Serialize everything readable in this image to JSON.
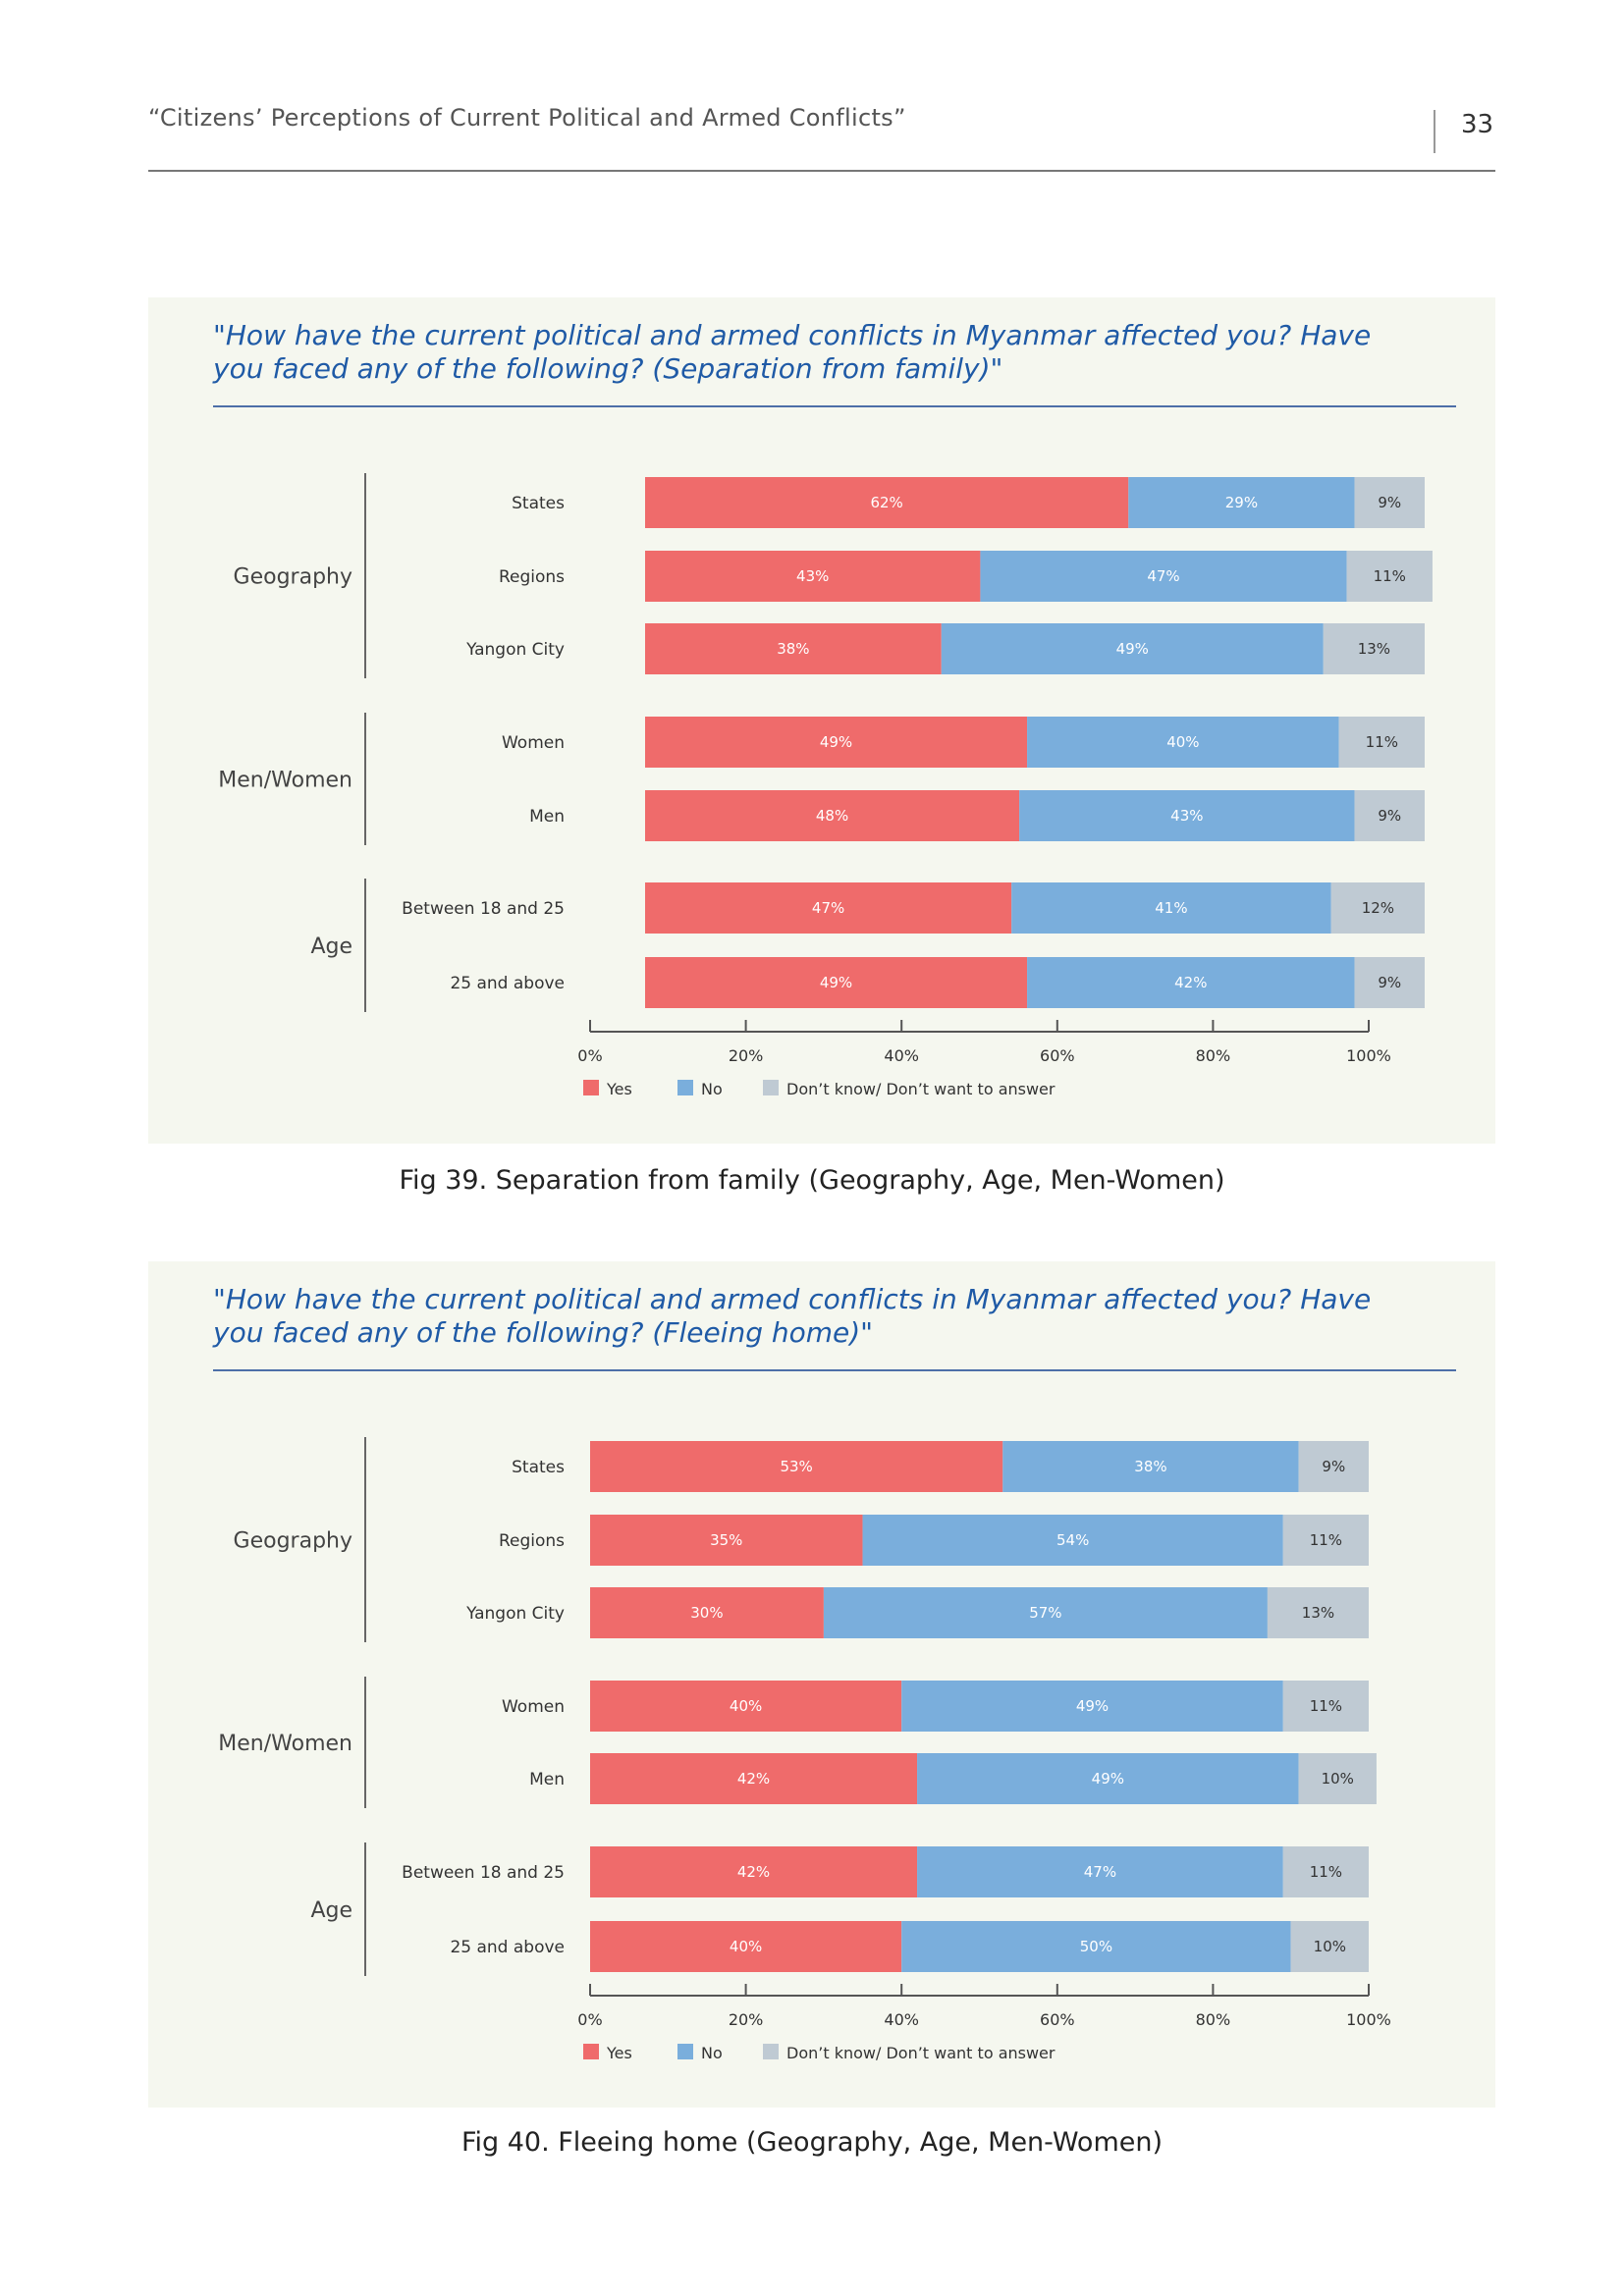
{
  "header": {
    "running_title": "“Citizens’ Perceptions of Current Political and Armed Conflicts”",
    "page_number": "33"
  },
  "colors": {
    "yes": "#ef6b6b",
    "no": "#7aaedc",
    "dk": "#bfcad3",
    "panel_bg": "#f5f7ef",
    "question": "#1f5aa6"
  },
  "legend": {
    "yes": "Yes",
    "no": "No",
    "dk": "Don’t know/ Don’t want to answer"
  },
  "figures": [
    {
      "question": "\"How have the current political and armed conflicts in Myanmar affected you? Have you faced any of the following? (Separation from family)\"",
      "caption": "Fig 39. Separation from family (Geography, Age, Men-Women)"
    },
    {
      "question": "\"How have the current political and armed conflicts in Myanmar affected you? Have you faced any of the following? (Fleeing home)\"",
      "caption": "Fig 40. Fleeing home (Geography, Age, Men-Women)"
    }
  ],
  "chart_data": [
    {
      "type": "bar",
      "orientation": "horizontal",
      "stacked": true,
      "xlim": [
        0,
        100
      ],
      "xticks": [
        "0%",
        "20%",
        "40%",
        "60%",
        "80%",
        "100%"
      ],
      "groups": [
        {
          "label": "Geography",
          "categories": [
            "States",
            "Regions",
            "Yangon City"
          ]
        },
        {
          "label": "Men/Women",
          "categories": [
            "Women",
            "Men"
          ]
        },
        {
          "label": "Age",
          "categories": [
            "Between 18 and 25",
            "25 and above"
          ]
        }
      ],
      "categories": [
        "States",
        "Regions",
        "Yangon City",
        "Women",
        "Men",
        "Between 18 and 25",
        "25 and above"
      ],
      "series": [
        {
          "name": "Yes",
          "values": [
            62,
            43,
            38,
            49,
            48,
            47,
            49
          ]
        },
        {
          "name": "No",
          "values": [
            29,
            47,
            49,
            40,
            43,
            41,
            42
          ]
        },
        {
          "name": "Don’t know/ Don’t want to answer",
          "values": [
            9,
            11,
            13,
            11,
            9,
            12,
            9
          ]
        }
      ],
      "legend_position": "bottom"
    },
    {
      "type": "bar",
      "orientation": "horizontal",
      "stacked": true,
      "xlim": [
        0,
        100
      ],
      "xticks": [
        "0%",
        "20%",
        "40%",
        "60%",
        "80%",
        "100%"
      ],
      "groups": [
        {
          "label": "Geography",
          "categories": [
            "States",
            "Regions",
            "Yangon City"
          ]
        },
        {
          "label": "Men/Women",
          "categories": [
            "Women",
            "Men"
          ]
        },
        {
          "label": "Age",
          "categories": [
            "Between 18 and 25",
            "25 and above"
          ]
        }
      ],
      "categories": [
        "States",
        "Regions",
        "Yangon City",
        "Women",
        "Men",
        "Between 18 and 25",
        "25 and above"
      ],
      "series": [
        {
          "name": "Yes",
          "values": [
            53,
            35,
            30,
            40,
            42,
            42,
            40
          ]
        },
        {
          "name": "No",
          "values": [
            38,
            54,
            57,
            49,
            49,
            47,
            50
          ]
        },
        {
          "name": "Don’t know/ Don’t want to answer",
          "values": [
            9,
            11,
            13,
            11,
            10,
            11,
            10
          ]
        }
      ],
      "legend_position": "bottom"
    }
  ]
}
